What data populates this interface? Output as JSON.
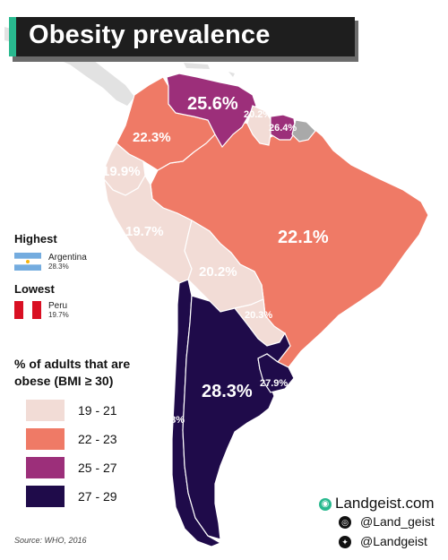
{
  "title": "Obesity prevalence",
  "map_labels": {
    "venezuela": "25.6%",
    "colombia": "22.3%",
    "guyana": "20.2%",
    "suriname": "26.4%",
    "ecuador": "19.9%",
    "peru": "19.7%",
    "brazil": "22.1%",
    "bolivia": "20.2%",
    "paraguay": "20.3%",
    "argentina": "28.3%",
    "uruguay": "27.9%",
    "chile": "28%"
  },
  "highest": {
    "heading": "Highest",
    "country": "Argentina",
    "value": "28.3%"
  },
  "lowest": {
    "heading": "Lowest",
    "country": "Peru",
    "value": "19.7%"
  },
  "legend": {
    "title": "% of adults that are obese (BMI ≥ 30)",
    "items": [
      {
        "range": "19 - 21",
        "color": "#f2dcd6"
      },
      {
        "range": "22 - 23",
        "color": "#ef7a66"
      },
      {
        "range": "25 - 27",
        "color": "#9c2f7a"
      },
      {
        "range": "27 - 29",
        "color": "#1f0b4a"
      }
    ]
  },
  "source": "Source: WHO, 2016",
  "credits": {
    "site": "Landgeist.com",
    "instagram": "@Land_geist",
    "twitter": "@Landgeist",
    "icons": [
      "globe-icon",
      "instagram-icon",
      "twitter-icon"
    ]
  },
  "colors": {
    "no_data": "#a9a9a9",
    "background_land": "#e0e0e0",
    "accent": "#29b98f"
  }
}
